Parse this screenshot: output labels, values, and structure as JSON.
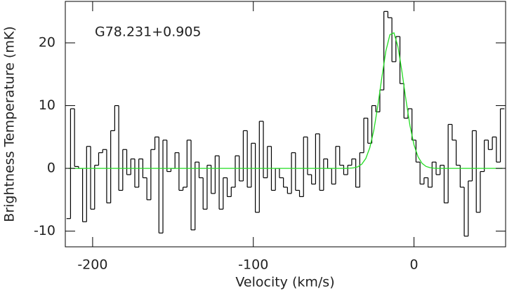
{
  "chart_data": {
    "type": "step",
    "annotation": "G78.231+0.905",
    "xlabel": "Velocity (km/s)",
    "ylabel": "Brightness Temperature (mK)",
    "xlim": [
      -217,
      57
    ],
    "ylim": [
      -12.5,
      26.6
    ],
    "xticks": [
      -200,
      -100,
      0
    ],
    "yticks": [
      -10,
      0,
      10,
      20
    ],
    "x": [
      -215,
      -212.5,
      -210,
      -207.5,
      -205,
      -202.5,
      -200,
      -197.5,
      -195,
      -192.5,
      -190,
      -187.5,
      -185,
      -182.5,
      -180,
      -177.5,
      -175,
      -172.5,
      -170,
      -167.5,
      -165,
      -162.5,
      -160,
      -157.5,
      -155,
      -152.5,
      -150,
      -147.5,
      -145,
      -142.5,
      -140,
      -137.5,
      -135,
      -132.5,
      -130,
      -127.5,
      -125,
      -122.5,
      -120,
      -117.5,
      -115,
      -112.5,
      -110,
      -107.5,
      -105,
      -102.5,
      -100,
      -97.5,
      -95,
      -92.5,
      -90,
      -87.5,
      -85,
      -82.5,
      -80,
      -77.5,
      -75,
      -72.5,
      -70,
      -67.5,
      -65,
      -62.5,
      -60,
      -57.5,
      -55,
      -52.5,
      -50,
      -47.5,
      -45,
      -42.5,
      -40,
      -37.5,
      -35,
      -32.5,
      -30,
      -27.5,
      -25,
      -22.5,
      -20,
      -17.5,
      -15,
      -12.5,
      -10,
      -7.5,
      -5,
      -2.5,
      0,
      2.5,
      5,
      7.5,
      10,
      12.5,
      15,
      17.5,
      20,
      22.5,
      25,
      27.5,
      30,
      32.5,
      35,
      37.5,
      40,
      42.5,
      45,
      47.5,
      50,
      52.5,
      55
    ],
    "series": [
      {
        "color": "#000000",
        "style": "step",
        "values": [
          -8,
          9.5,
          0.3,
          0,
          -8.5,
          3.5,
          -6.5,
          0.5,
          2.5,
          3,
          -5.5,
          6,
          10,
          -3.5,
          3,
          -1,
          1.5,
          -3,
          1.5,
          -1.5,
          -5,
          3,
          5,
          -10.3,
          4.5,
          -0.5,
          0,
          2.5,
          -3.5,
          -3,
          4.5,
          -9.8,
          1,
          -1.5,
          -6.5,
          0.5,
          -4,
          2,
          -6.5,
          -1.5,
          -4.5,
          -3,
          2,
          -2,
          6,
          -3,
          4,
          -7,
          7.5,
          -1.5,
          3.5,
          -3.5,
          0,
          -1.5,
          -3,
          -4,
          2.5,
          -3.5,
          -4.5,
          5,
          -1,
          -2.5,
          5.5,
          -3.5,
          1.5,
          0,
          -2.5,
          3.5,
          0.5,
          -1,
          0.5,
          1.5,
          -3,
          2.5,
          8,
          4,
          10,
          9,
          12.5,
          25,
          24,
          17,
          21,
          13.5,
          8,
          9.5,
          4.5,
          1,
          -2.5,
          -1.5,
          -3,
          1,
          -1,
          0.5,
          -5.5,
          7,
          4.5,
          0.5,
          -3,
          -10.8,
          -2,
          6,
          -7,
          -0.5,
          4.5,
          3,
          5,
          1,
          9.5
        ]
      },
      {
        "color": "#22dd22",
        "style": "line",
        "values": [
          0,
          0,
          0,
          0,
          0,
          0,
          0,
          0,
          0,
          0,
          0,
          0,
          0,
          0,
          0,
          0,
          0,
          0,
          0,
          0,
          0,
          0,
          0,
          0,
          0,
          0,
          0,
          0,
          0,
          0,
          0,
          0,
          0,
          0,
          0,
          0,
          0,
          0,
          0,
          0,
          0,
          0,
          0,
          0,
          0,
          0,
          0,
          0,
          0,
          0,
          0,
          0,
          0,
          0,
          0,
          0,
          0,
          0,
          0,
          0,
          0,
          0,
          0,
          0,
          0,
          0,
          0,
          0,
          0,
          0,
          0.03,
          0.08,
          0.25,
          0.67,
          1.57,
          3.29,
          6.08,
          9.99,
          14.5,
          18.7,
          21.3,
          21.6,
          19.4,
          15.4,
          10.9,
          6.8,
          3.75,
          1.84,
          0.8,
          0.31,
          0.11,
          0.03,
          0,
          0,
          0,
          0,
          0,
          0,
          0,
          0,
          0,
          0,
          0,
          0,
          0,
          0,
          0,
          0,
          0
        ]
      }
    ]
  }
}
